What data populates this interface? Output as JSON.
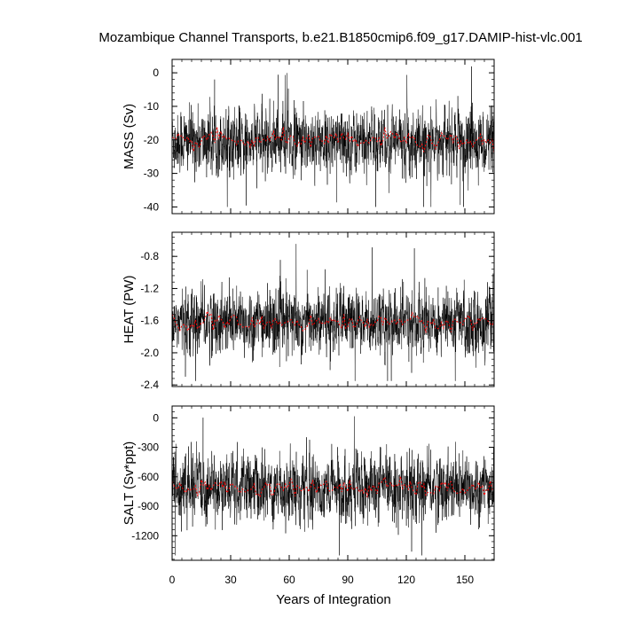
{
  "chart": {
    "title": "Mozambique Channel Transports, b.e21.B1850cmip6.f09_g17.DAMIP-hist-vlc.001",
    "xlabel": "Years of Integration"
  },
  "chart_data": {
    "type": "line",
    "title": "Mozambique Channel Transports, b.e21.B1850cmip6.f09_g17.DAMIP-hist-vlc.001",
    "xlabel": "Years of Integration",
    "xlim": [
      0,
      165
    ],
    "x_ticks": [
      "0",
      "30",
      "60",
      "90",
      "120",
      "150"
    ],
    "x_tick_values": [
      0,
      30,
      60,
      90,
      120,
      150
    ],
    "grid": false,
    "legend": "none",
    "panels": [
      {
        "ylabel": "MASS (Sv)",
        "ylim": [
          -42,
          4
        ],
        "y_ticks": [
          "0",
          "-10",
          "-20",
          "-30",
          "-40"
        ],
        "y_tick_values": [
          0,
          -10,
          -20,
          -30,
          -40
        ],
        "series": [
          {
            "kind": "monthly",
            "color": "#000000",
            "mean": -20.5,
            "spread": 4.5,
            "min": -40,
            "max": 2,
            "description": "monthly values, 1980 points"
          },
          {
            "kind": "annual",
            "color": "#ff0000",
            "mean": -20.5,
            "x": [
              0,
              10,
              20,
              30,
              40,
              50,
              60,
              70,
              80,
              90,
              100,
              110,
              120,
              130,
              140,
              150,
              160,
              165
            ],
            "values": [
              -20,
              -21,
              -19,
              -20,
              -21,
              -20,
              -19,
              -21,
              -20,
              -20,
              -21,
              -19,
              -20,
              -21,
              -20,
              -21,
              -20,
              -21
            ]
          }
        ]
      },
      {
        "ylabel": "HEAT (PW)",
        "ylim": [
          -2.42,
          -0.5
        ],
        "y_ticks": [
          "-0.8",
          "-1.2",
          "-1.6",
          "-2.0",
          "-2.4"
        ],
        "y_tick_values": [
          -0.8,
          -1.2,
          -1.6,
          -2.0,
          -2.4
        ],
        "series": [
          {
            "kind": "monthly",
            "color": "#000000",
            "mean": -1.62,
            "spread": 0.19,
            "min": -2.35,
            "max": -0.55
          },
          {
            "kind": "annual",
            "color": "#ff0000",
            "mean": -1.62,
            "x": [
              0,
              10,
              20,
              30,
              40,
              50,
              60,
              70,
              80,
              90,
              100,
              110,
              120,
              130,
              140,
              150,
              160,
              165
            ],
            "values": [
              -1.62,
              -1.65,
              -1.58,
              -1.62,
              -1.66,
              -1.63,
              -1.6,
              -1.64,
              -1.62,
              -1.61,
              -1.65,
              -1.58,
              -1.6,
              -1.64,
              -1.63,
              -1.62,
              -1.6,
              -1.64
            ]
          }
        ]
      },
      {
        "ylabel": "SALT (Sv*ppt)",
        "ylim": [
          -1450,
          120
        ],
        "y_ticks": [
          "0",
          "-300",
          "-600",
          "-900",
          "-1200"
        ],
        "y_tick_values": [
          0,
          -300,
          -600,
          -900,
          -1200
        ],
        "series": [
          {
            "kind": "monthly",
            "color": "#000000",
            "mean": -715,
            "spread": 160,
            "min": -1400,
            "max": 70
          },
          {
            "kind": "annual",
            "color": "#ff0000",
            "mean": -715,
            "x": [
              0,
              10,
              20,
              30,
              40,
              50,
              60,
              70,
              80,
              90,
              100,
              110,
              120,
              130,
              140,
              150,
              160,
              165
            ],
            "values": [
              -700,
              -730,
              -680,
              -710,
              -740,
              -715,
              -690,
              -725,
              -710,
              -705,
              -735,
              -680,
              -700,
              -730,
              -720,
              -725,
              -700,
              -740
            ]
          }
        ]
      }
    ]
  }
}
